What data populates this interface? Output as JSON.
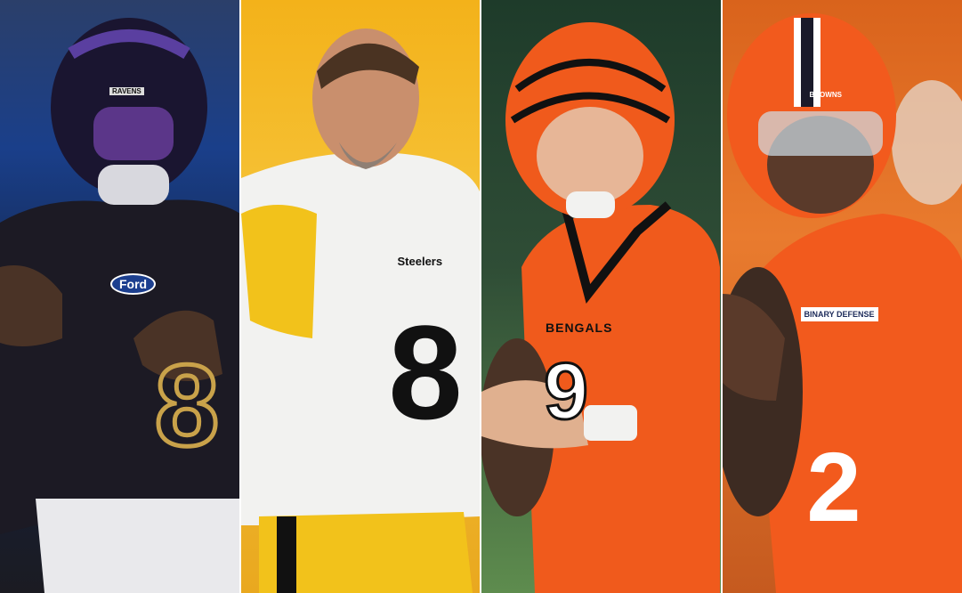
{
  "panels": [
    {
      "team": "Ravens",
      "helmet_text": "RAVENS",
      "sponsor": "Ford",
      "number": "8",
      "colors": {
        "jersey": "#1c1a24",
        "accent": "#4b2e83"
      }
    },
    {
      "team": "Steelers",
      "jersey_text": "Steelers",
      "number": "8",
      "colors": {
        "jersey": "#f2f2f0",
        "accent": "#f2c21b"
      }
    },
    {
      "team": "Bengals",
      "jersey_text": "BENGALS",
      "number": "9",
      "colors": {
        "jersey": "#f05a1c",
        "accent": "#111111"
      }
    },
    {
      "team": "Browns",
      "helmet_text": "BROWNS",
      "sponsor": "BINARY DEFENSE",
      "number": "2",
      "colors": {
        "jersey": "#f25a1d",
        "accent": "#ffffff"
      }
    }
  ]
}
